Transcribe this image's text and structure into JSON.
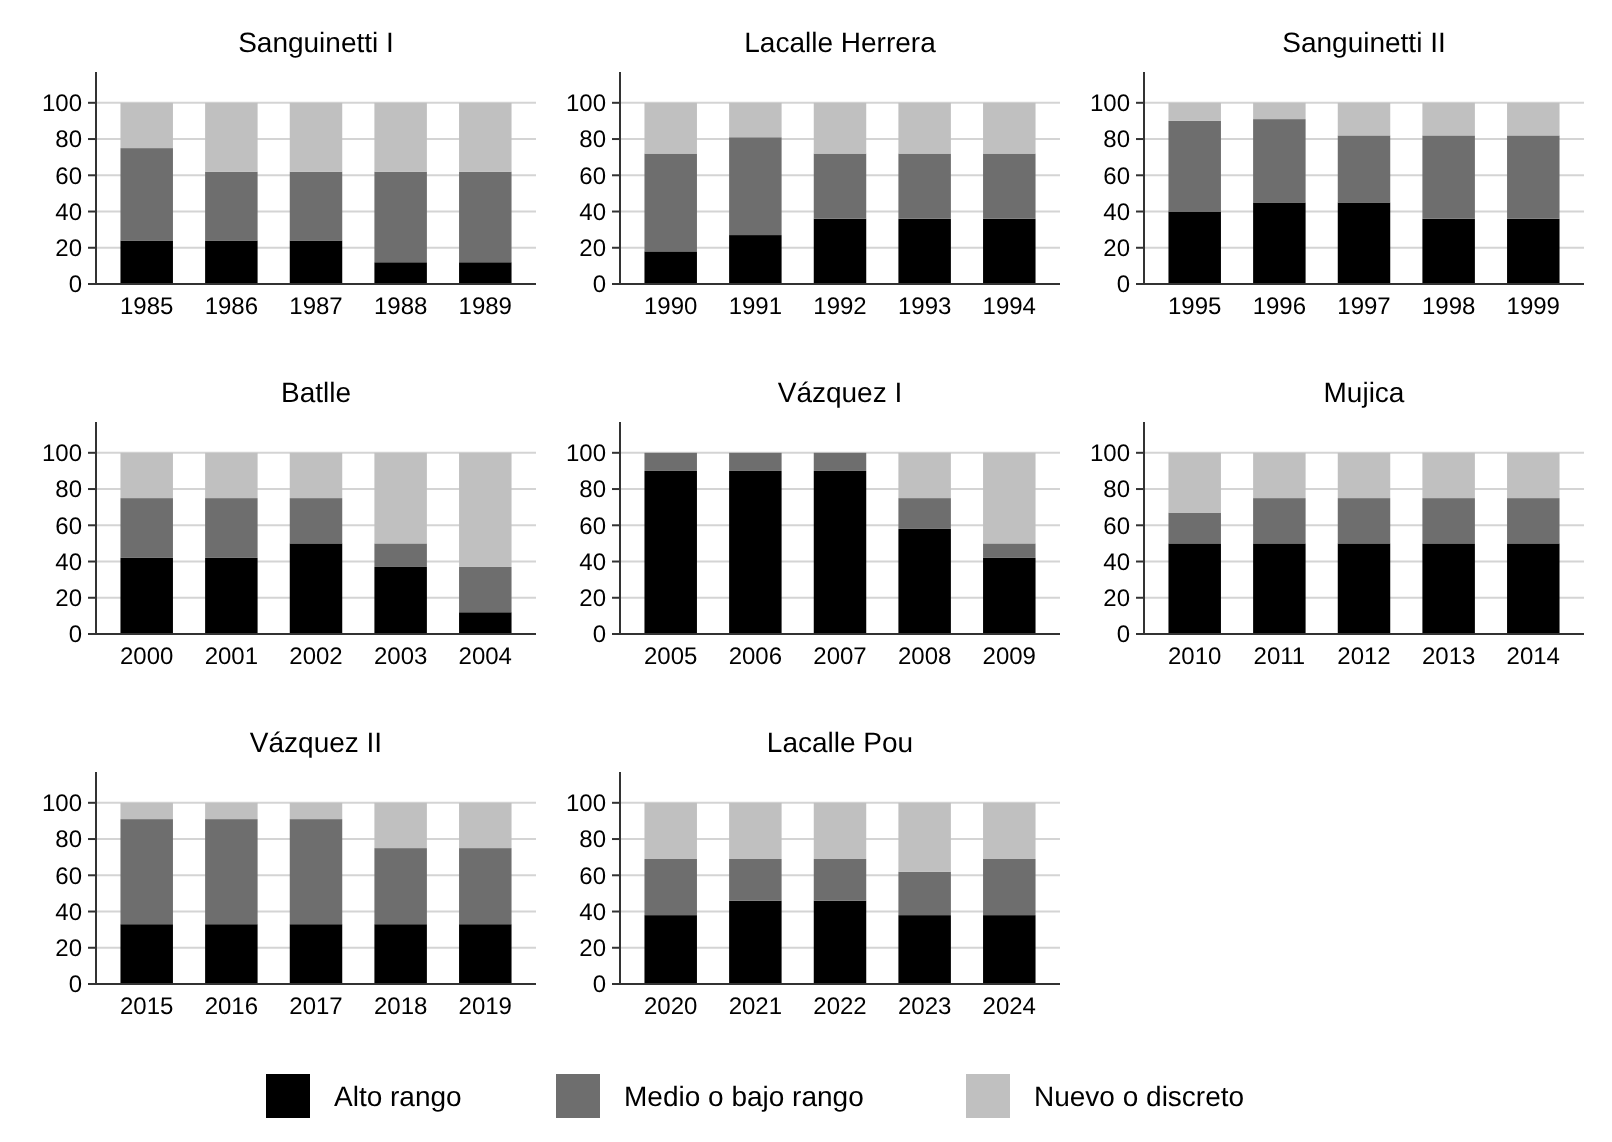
{
  "chart_data": [
    {
      "type": "bar",
      "stacked": true,
      "title": "Sanguinetti I",
      "categories": [
        "1985",
        "1986",
        "1987",
        "1988",
        "1989"
      ],
      "ylim": [
        0,
        117
      ],
      "yticks": [
        0,
        20,
        40,
        60,
        80,
        100
      ],
      "grid": "y",
      "legend": "bottom",
      "series": [
        {
          "name": "Alto rango",
          "color": "#000000",
          "values": [
            24,
            24,
            24,
            12,
            12
          ]
        },
        {
          "name": "Medio o bajo rango",
          "color": "#6e6e6e",
          "values": [
            51,
            38,
            38,
            50,
            50
          ]
        },
        {
          "name": "Nuevo o discreto",
          "color": "#c0c0c0",
          "values": [
            25,
            38,
            38,
            38,
            38
          ]
        }
      ]
    },
    {
      "type": "bar",
      "stacked": true,
      "title": "Lacalle Herrera",
      "categories": [
        "1990",
        "1991",
        "1992",
        "1993",
        "1994"
      ],
      "ylim": [
        0,
        117
      ],
      "yticks": [
        0,
        20,
        40,
        60,
        80,
        100
      ],
      "grid": "y",
      "series": [
        {
          "color": "#000000",
          "values": [
            18,
            27,
            36,
            36,
            36
          ]
        },
        {
          "color": "#6e6e6e",
          "values": [
            54,
            54,
            36,
            36,
            36
          ]
        },
        {
          "color": "#c0c0c0",
          "values": [
            28,
            19,
            28,
            28,
            28
          ]
        }
      ]
    },
    {
      "type": "bar",
      "stacked": true,
      "title": "Sanguinetti II",
      "categories": [
        "1995",
        "1996",
        "1997",
        "1998",
        "1999"
      ],
      "ylim": [
        0,
        117
      ],
      "yticks": [
        0,
        20,
        40,
        60,
        80,
        100
      ],
      "grid": "y",
      "series": [
        {
          "color": "#000000",
          "values": [
            40,
            45,
            45,
            36,
            36
          ]
        },
        {
          "color": "#6e6e6e",
          "values": [
            50,
            46,
            37,
            46,
            46
          ]
        },
        {
          "color": "#c0c0c0",
          "values": [
            10,
            9,
            18,
            18,
            18
          ]
        }
      ]
    },
    {
      "type": "bar",
      "stacked": true,
      "title": "Batlle",
      "categories": [
        "2000",
        "2001",
        "2002",
        "2003",
        "2004"
      ],
      "ylim": [
        0,
        117
      ],
      "yticks": [
        0,
        20,
        40,
        60,
        80,
        100
      ],
      "grid": "y",
      "series": [
        {
          "color": "#000000",
          "values": [
            42,
            42,
            50,
            37,
            12
          ]
        },
        {
          "color": "#6e6e6e",
          "values": [
            33,
            33,
            25,
            13,
            25
          ]
        },
        {
          "color": "#c0c0c0",
          "values": [
            25,
            25,
            25,
            50,
            63
          ]
        }
      ]
    },
    {
      "type": "bar",
      "stacked": true,
      "title": "Vázquez I",
      "categories": [
        "2005",
        "2006",
        "2007",
        "2008",
        "2009"
      ],
      "ylim": [
        0,
        117
      ],
      "yticks": [
        0,
        20,
        40,
        60,
        80,
        100
      ],
      "grid": "y",
      "series": [
        {
          "color": "#000000",
          "values": [
            90,
            90,
            90,
            58,
            42
          ]
        },
        {
          "color": "#6e6e6e",
          "values": [
            10,
            10,
            10,
            17,
            8
          ]
        },
        {
          "color": "#c0c0c0",
          "values": [
            0,
            0,
            0,
            25,
            50
          ]
        }
      ]
    },
    {
      "type": "bar",
      "stacked": true,
      "title": "Mujica",
      "categories": [
        "2010",
        "2011",
        "2012",
        "2013",
        "2014"
      ],
      "ylim": [
        0,
        117
      ],
      "yticks": [
        0,
        20,
        40,
        60,
        80,
        100
      ],
      "grid": "y",
      "series": [
        {
          "color": "#000000",
          "values": [
            50,
            50,
            50,
            50,
            50
          ]
        },
        {
          "color": "#6e6e6e",
          "values": [
            17,
            25,
            25,
            25,
            25
          ]
        },
        {
          "color": "#c0c0c0",
          "values": [
            33,
            25,
            25,
            25,
            25
          ]
        }
      ]
    },
    {
      "type": "bar",
      "stacked": true,
      "title": "Vázquez II",
      "categories": [
        "2015",
        "2016",
        "2017",
        "2018",
        "2019"
      ],
      "ylim": [
        0,
        117
      ],
      "yticks": [
        0,
        20,
        40,
        60,
        80,
        100
      ],
      "grid": "y",
      "series": [
        {
          "color": "#000000",
          "values": [
            33,
            33,
            33,
            33,
            33
          ]
        },
        {
          "color": "#6e6e6e",
          "values": [
            58,
            58,
            58,
            42,
            42
          ]
        },
        {
          "color": "#c0c0c0",
          "values": [
            9,
            9,
            9,
            25,
            25
          ]
        }
      ]
    },
    {
      "type": "bar",
      "stacked": true,
      "title": "Lacalle Pou",
      "categories": [
        "2020",
        "2021",
        "2022",
        "2023",
        "2024"
      ],
      "ylim": [
        0,
        117
      ],
      "yticks": [
        0,
        20,
        40,
        60,
        80,
        100
      ],
      "grid": "y",
      "series": [
        {
          "color": "#000000",
          "values": [
            38,
            46,
            46,
            38,
            38
          ]
        },
        {
          "color": "#6e6e6e",
          "values": [
            31,
            23,
            23,
            24,
            31
          ]
        },
        {
          "color": "#c0c0c0",
          "values": [
            31,
            31,
            31,
            38,
            31
          ]
        }
      ]
    }
  ]
}
